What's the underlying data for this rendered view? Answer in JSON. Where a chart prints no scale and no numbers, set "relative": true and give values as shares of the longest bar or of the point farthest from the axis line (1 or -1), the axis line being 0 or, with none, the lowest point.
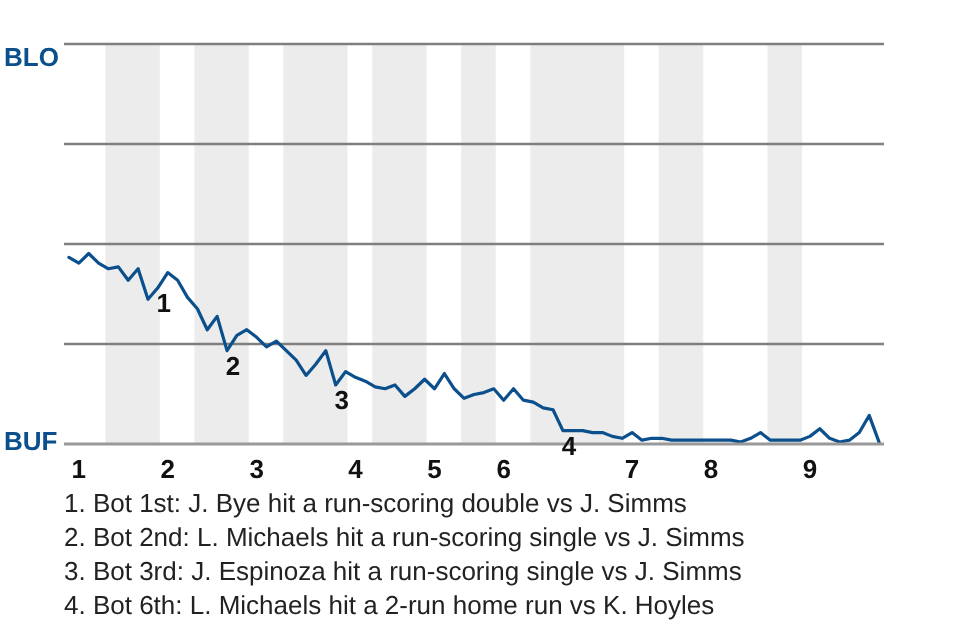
{
  "chart_data": {
    "type": "line",
    "relative": true,
    "categories": [
      null,
      "1",
      null,
      null,
      null,
      null,
      null,
      null,
      null,
      null,
      "2",
      null,
      null,
      null,
      null,
      null,
      null,
      null,
      null,
      "3",
      null,
      null,
      null,
      null,
      null,
      null,
      null,
      null,
      null,
      "4",
      null,
      null,
      null,
      null,
      null,
      null,
      null,
      "5",
      null,
      null,
      null,
      null,
      null,
      null,
      "6",
      null,
      null,
      null,
      null,
      null,
      null,
      null,
      null,
      null,
      null,
      null,
      null,
      "7",
      null,
      null,
      null,
      null,
      null,
      null,
      null,
      "8",
      null,
      null,
      null,
      null,
      null,
      null,
      null,
      null,
      null,
      "9",
      null,
      null,
      null,
      null,
      null,
      null,
      null
    ],
    "series": [
      {
        "color": "#0b4f8c",
        "values": [
          0.98,
          0.95,
          1,
          0.95,
          0.92,
          0.93,
          0.86,
          0.92,
          0.76,
          0.82,
          0.9,
          0.86,
          0.77,
          0.71,
          0.6,
          0.67,
          0.49,
          0.57,
          0.6,
          0.56,
          0.51,
          0.54,
          0.49,
          0.44,
          0.36,
          0.42,
          0.49,
          0.31,
          0.38,
          0.35,
          0.33,
          0.3,
          0.29,
          0.31,
          0.25,
          0.29,
          0.34,
          0.29,
          0.37,
          0.29,
          0.24,
          0.26,
          0.27,
          0.29,
          0.23,
          0.29,
          0.23,
          0.22,
          0.19,
          0.18,
          0.07,
          0.07,
          0.07,
          0.06,
          0.06,
          0.04,
          0.03,
          0.06,
          0.02,
          0.03,
          0.03,
          0.02,
          0.02,
          0.02,
          0.02,
          0.02,
          0.02,
          0.02,
          0.01,
          0.03,
          0.06,
          0.02,
          0.02,
          0.02,
          0.02,
          0.04,
          0.08,
          0.03,
          0.01,
          0.02,
          0.06,
          0.15,
          0.01
        ]
      }
    ],
    "ref_lines": [
      {
        "axis": "y",
        "value": 0.525,
        "color": "#7f7f7f"
      },
      {
        "axis": "y",
        "value": 1.05,
        "color": "#7f7f7f"
      },
      {
        "axis": "y",
        "value": 1.575,
        "color": "#7f7f7f"
      },
      {
        "axis": "y",
        "value": 2.1,
        "color": "#7f7f7f"
      }
    ],
    "annotations": [
      "BLO",
      "BUF",
      "1. Bot 1st: J. Bye hit a run-scoring double vs J. Simms",
      "2. Bot 2nd: L. Michaels hit a run-scoring single vs J. Simms",
      "3. Bot 3rd: J. Espinoza hit a run-scoring single vs J. Simms",
      "4. Bot 6th: L. Michaels hit a 2-run home run vs K. Hoyles",
      "1",
      "2",
      "3",
      "4"
    ],
    "marker": "none",
    "line_style": "solid"
  }
}
